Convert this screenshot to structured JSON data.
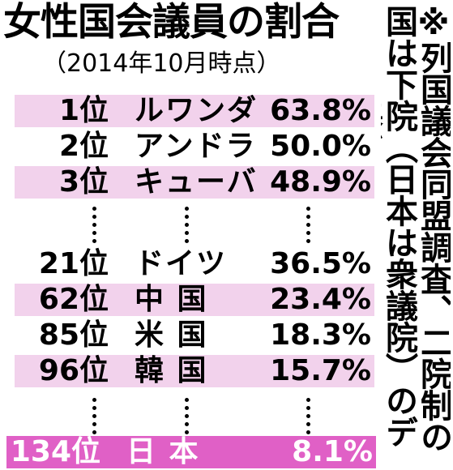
{
  "title": "女性国会議員の割合",
  "subtitle": "（2014年10月時点）",
  "note": "※列国議会同盟調査、二院制の国は下院（日本は衆議院）のデータに基づく",
  "chart_data": {
    "type": "table",
    "columns": [
      "rank",
      "country",
      "percent"
    ],
    "rows": [
      {
        "rank": "1位",
        "country": "ルワンダ",
        "percent": "63.8%",
        "value": 63.8,
        "shade": true
      },
      {
        "rank": "2位",
        "country": "アンドラ",
        "percent": "50.0%",
        "value": 50.0,
        "shade": false
      },
      {
        "rank": "3位",
        "country": "キューバ",
        "percent": "48.9%",
        "value": 48.9,
        "shade": true
      },
      {
        "rank": "21位",
        "country": "ドイツ",
        "percent": "36.5%",
        "value": 36.5,
        "shade": false
      },
      {
        "rank": "62位",
        "country": "中 国",
        "percent": "23.4%",
        "value": 23.4,
        "shade": true
      },
      {
        "rank": "85位",
        "country": "米 国",
        "percent": "18.3%",
        "value": 18.3,
        "shade": false
      },
      {
        "rank": "96位",
        "country": "韓 国",
        "percent": "15.7%",
        "value": 15.7,
        "shade": true
      },
      {
        "rank": "134位",
        "country": "日 本",
        "percent": "8.1%",
        "value": 8.1,
        "highlight": true
      }
    ]
  }
}
